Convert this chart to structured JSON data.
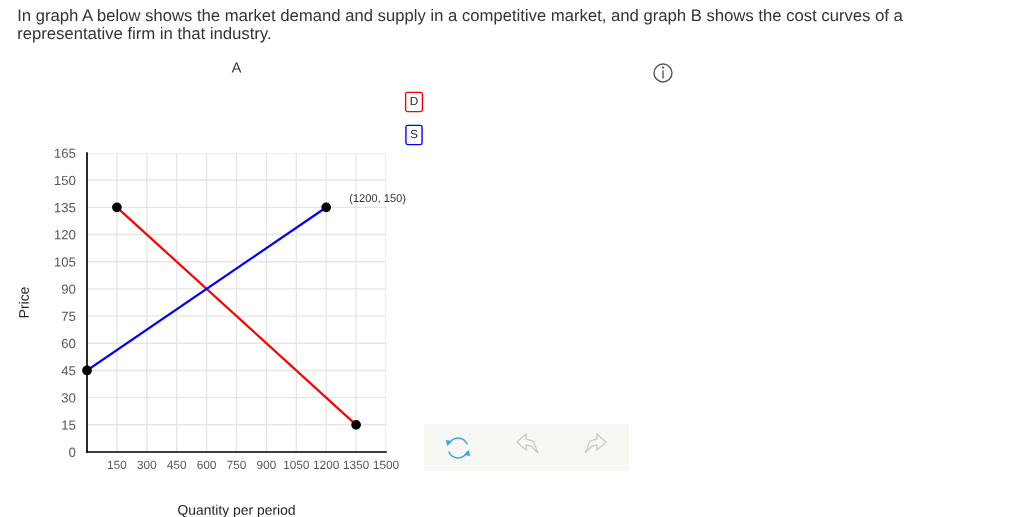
{
  "chart_data": {
    "type": "line",
    "title": "In graph A below shows the market demand and supply in a competitive market, and graph B shows the cost curves of a representative firm in that industry.",
    "subtitle": "A",
    "xlabel": "Quantity per period",
    "ylabel": "Price",
    "series": [
      {
        "name": "D",
        "color": "#ff0000",
        "x": [
          150,
          1350
        ],
        "values": [
          135,
          15
        ]
      },
      {
        "name": "S",
        "color": "#0000ff",
        "x": [
          0,
          1200
        ],
        "values": [
          45,
          135
        ]
      }
    ],
    "annotations": [
      {
        "text": "(1200, 150)",
        "x": 1200,
        "y": 135
      }
    ],
    "xlim": [
      0,
      1500
    ],
    "ylim": [
      0,
      165
    ],
    "xticks": [
      150,
      300,
      450,
      600,
      750,
      900,
      1050,
      1200,
      1350,
      1500
    ],
    "yticks": [
      0,
      15,
      30,
      45,
      60,
      75,
      90,
      105,
      120,
      135,
      150,
      165
    ],
    "grid": true,
    "legend": "top right",
    "marker": "circle",
    "line_style": "solid"
  }
}
